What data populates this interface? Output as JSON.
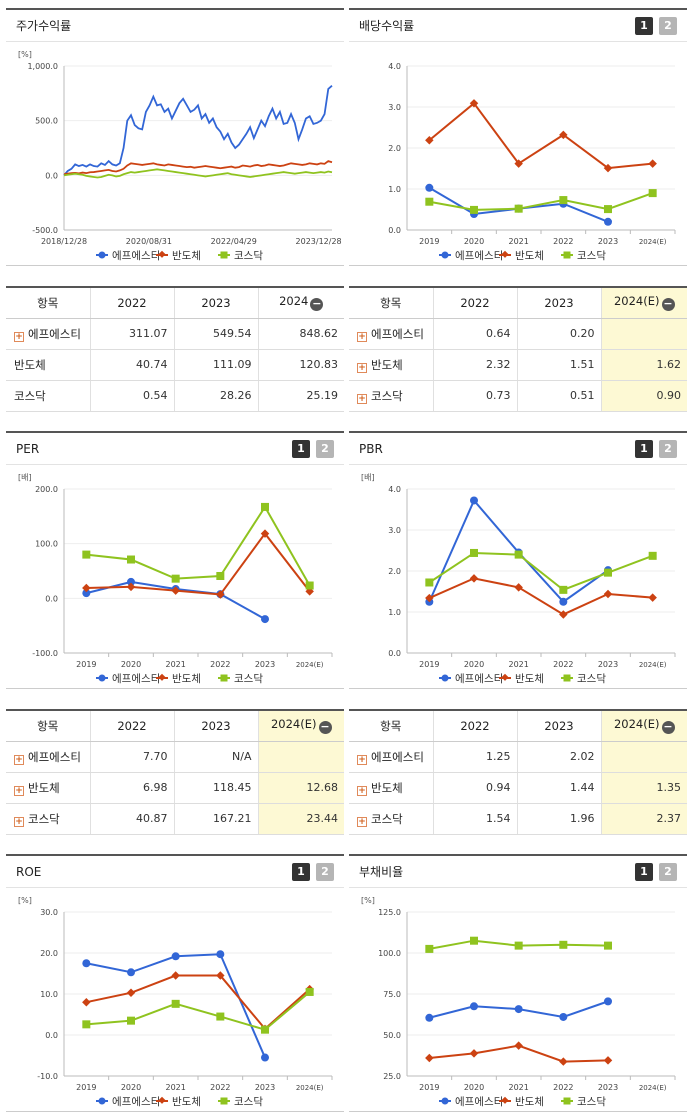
{
  "colors": {
    "s1": "#3266d6",
    "s2": "#cc4212",
    "s3": "#8fc31f"
  },
  "legend": [
    "에프에스티",
    "반도체",
    "코스닥"
  ],
  "panels": [
    {
      "id": "stock",
      "title": "주가수익률",
      "toggles": false,
      "unit": "[%]",
      "chart_data": {
        "type": "line",
        "x_tick_labels": [
          "2018/12/28",
          "2020/08/31",
          "2022/04/29",
          "2023/12/28"
        ],
        "y_ticks": [
          "1,000.0",
          "500.0",
          "0.0",
          "-500.0"
        ],
        "ylim": [
          -500,
          1000
        ],
        "series": [
          {
            "name": "에프에스티",
            "values": [
              0,
              40,
              60,
              100,
              85,
              95,
              80,
              100,
              85,
              80,
              110,
              95,
              130,
              100,
              90,
              110,
              250,
              500,
              550,
              460,
              430,
              420,
              580,
              640,
              720,
              640,
              650,
              580,
              610,
              520,
              590,
              660,
              700,
              640,
              580,
              600,
              640,
              520,
              560,
              480,
              520,
              440,
              400,
              330,
              380,
              300,
              250,
              280,
              330,
              380,
              440,
              340,
              420,
              500,
              450,
              540,
              610,
              520,
              580,
              470,
              480,
              560,
              480,
              330,
              420,
              520,
              540,
              470,
              480,
              500,
              560,
              790,
              820
            ],
            "step": 1
          },
          {
            "name": "반도체",
            "values": [
              10,
              15,
              20,
              22,
              18,
              25,
              20,
              28,
              30,
              35,
              40,
              45,
              50,
              40,
              35,
              45,
              60,
              90,
              110,
              105,
              100,
              95,
              100,
              105,
              110,
              100,
              95,
              90,
              100,
              95,
              90,
              85,
              80,
              75,
              78,
              70,
              75,
              80,
              85,
              80,
              75,
              70,
              65,
              70,
              75,
              80,
              70,
              75,
              90,
              85,
              80,
              90,
              95,
              85,
              90,
              100,
              95,
              90,
              85,
              90,
              100,
              110,
              105,
              100,
              95,
              100,
              110,
              105,
              100,
              110,
              105,
              130,
              120
            ]
          },
          {
            "name": "코스닥",
            "values": [
              0,
              5,
              10,
              15,
              10,
              5,
              -5,
              -10,
              -15,
              -20,
              -15,
              -5,
              5,
              0,
              -10,
              -5,
              10,
              20,
              30,
              25,
              30,
              35,
              40,
              45,
              50,
              55,
              50,
              45,
              40,
              35,
              30,
              25,
              20,
              15,
              10,
              5,
              0,
              -5,
              -10,
              -5,
              0,
              5,
              10,
              15,
              20,
              10,
              5,
              0,
              -5,
              -10,
              -15,
              -10,
              -5,
              0,
              5,
              10,
              15,
              20,
              25,
              30,
              25,
              20,
              15,
              20,
              25,
              30,
              25,
              20,
              25,
              30,
              25,
              35,
              28
            ]
          }
        ]
      }
    },
    {
      "id": "dividend",
      "title": "배당수익률",
      "toggles": true,
      "unit": "",
      "chart_data": {
        "type": "line",
        "categories": [
          "2019",
          "2020",
          "2021",
          "2022",
          "2023",
          "2024(E)"
        ],
        "y_ticks": [
          "4.0",
          "3.0",
          "2.0",
          "1.0",
          "0.0"
        ],
        "ylim": [
          0,
          4
        ],
        "series": [
          {
            "name": "에프에스티",
            "values": [
              1.03,
              0.39,
              0.52,
              0.64,
              0.2,
              null
            ]
          },
          {
            "name": "반도체",
            "values": [
              2.19,
              3.09,
              1.62,
              2.32,
              1.51,
              1.62
            ]
          },
          {
            "name": "코스닥",
            "values": [
              0.69,
              0.49,
              0.52,
              0.73,
              0.51,
              0.9
            ]
          }
        ]
      }
    },
    {
      "id": "per",
      "title": "PER",
      "toggles": true,
      "unit": "[배]",
      "chart_data": {
        "type": "line",
        "categories": [
          "2019",
          "2020",
          "2021",
          "2022",
          "2023",
          "2024(E)"
        ],
        "y_ticks": [
          "200.0",
          "100.0",
          "0.0",
          "-100.0"
        ],
        "ylim": [
          -100,
          200
        ],
        "series": [
          {
            "name": "에프에스티",
            "values": [
              9.5,
              30.0,
              17.0,
              7.7,
              -38.0,
              null
            ]
          },
          {
            "name": "반도체",
            "values": [
              19.0,
              21.0,
              14.0,
              6.98,
              118.45,
              12.68
            ]
          },
          {
            "name": "코스닥",
            "values": [
              80.0,
              71.0,
              36.0,
              40.87,
              167.21,
              23.44
            ]
          }
        ]
      }
    },
    {
      "id": "pbr",
      "title": "PBR",
      "toggles": true,
      "unit": "[배]",
      "chart_data": {
        "type": "line",
        "categories": [
          "2019",
          "2020",
          "2021",
          "2022",
          "2023",
          "2024(E)"
        ],
        "y_ticks": [
          "4.0",
          "3.0",
          "2.0",
          "1.0",
          "0.0"
        ],
        "ylim": [
          0,
          4
        ],
        "series": [
          {
            "name": "에프에스티",
            "values": [
              1.25,
              3.72,
              2.45,
              1.25,
              2.02,
              null
            ]
          },
          {
            "name": "반도체",
            "values": [
              1.34,
              1.82,
              1.6,
              0.94,
              1.44,
              1.35
            ]
          },
          {
            "name": "코스닥",
            "values": [
              1.72,
              2.44,
              2.4,
              1.54,
              1.96,
              2.37
            ]
          }
        ]
      }
    },
    {
      "id": "roe",
      "title": "ROE",
      "toggles": true,
      "unit": "[%]",
      "chart_data": {
        "type": "line",
        "categories": [
          "2019",
          "2020",
          "2021",
          "2022",
          "2023",
          "2024(E)"
        ],
        "y_ticks": [
          "30.0",
          "20.0",
          "10.0",
          "0.0",
          "-10.0"
        ],
        "ylim": [
          -10,
          30
        ],
        "series": [
          {
            "name": "에프에스티",
            "values": [
              17.5,
              15.3,
              19.2,
              19.7,
              -5.5,
              null
            ]
          },
          {
            "name": "반도체",
            "values": [
              8.0,
              10.3,
              14.5,
              14.5,
              1.5,
              11.2
            ]
          },
          {
            "name": "코스닥",
            "values": [
              2.6,
              3.5,
              7.6,
              4.5,
              1.3,
              10.5
            ]
          }
        ]
      }
    },
    {
      "id": "debt",
      "title": "부채비율",
      "toggles": true,
      "unit": "[%]",
      "chart_data": {
        "type": "line",
        "categories": [
          "2019",
          "2020",
          "2021",
          "2022",
          "2023",
          "2024(E)"
        ],
        "y_ticks": [
          "125.0",
          "100.0",
          "75.0",
          "50.0",
          "25.0"
        ],
        "ylim": [
          25,
          125
        ],
        "series": [
          {
            "name": "에프에스티",
            "values": [
              60.5,
              67.5,
              65.8,
              61.0,
              70.5,
              null
            ]
          },
          {
            "name": "반도체",
            "values": [
              36.0,
              38.8,
              43.5,
              33.8,
              34.5,
              null
            ]
          },
          {
            "name": "코스닥",
            "values": [
              102.5,
              107.5,
              104.5,
              105.0,
              104.5,
              null
            ]
          }
        ]
      }
    }
  ],
  "tables": [
    {
      "id": "t-stock",
      "head": [
        "항목",
        "2022",
        "2023",
        "2024"
      ],
      "minus": true,
      "hl_col": -1,
      "rows": [
        {
          "plus": true,
          "name": "에프에스티",
          "v": [
            "311.07",
            "549.54",
            "848.62"
          ]
        },
        {
          "plus": false,
          "name": "반도체",
          "v": [
            "40.74",
            "111.09",
            "120.83"
          ]
        },
        {
          "plus": false,
          "name": "코스닥",
          "v": [
            "0.54",
            "28.26",
            "25.19"
          ]
        }
      ]
    },
    {
      "id": "t-div",
      "head": [
        "항목",
        "2022",
        "2023",
        "2024(E)"
      ],
      "minus": true,
      "hl_col": 2,
      "rows": [
        {
          "plus": true,
          "name": "에프에스티",
          "v": [
            "0.64",
            "0.20",
            ""
          ]
        },
        {
          "plus": true,
          "name": "반도체",
          "v": [
            "2.32",
            "1.51",
            "1.62"
          ]
        },
        {
          "plus": true,
          "name": "코스닥",
          "v": [
            "0.73",
            "0.51",
            "0.90"
          ]
        }
      ]
    },
    {
      "id": "t-per",
      "head": [
        "항목",
        "2022",
        "2023",
        "2024(E)"
      ],
      "minus": true,
      "hl_col": 2,
      "rows": [
        {
          "plus": true,
          "name": "에프에스티",
          "v": [
            "7.70",
            "N/A",
            ""
          ]
        },
        {
          "plus": true,
          "name": "반도체",
          "v": [
            "6.98",
            "118.45",
            "12.68"
          ]
        },
        {
          "plus": true,
          "name": "코스닥",
          "v": [
            "40.87",
            "167.21",
            "23.44"
          ]
        }
      ]
    },
    {
      "id": "t-pbr",
      "head": [
        "항목",
        "2022",
        "2023",
        "2024(E)"
      ],
      "minus": true,
      "hl_col": 2,
      "rows": [
        {
          "plus": true,
          "name": "에프에스티",
          "v": [
            "1.25",
            "2.02",
            ""
          ]
        },
        {
          "plus": true,
          "name": "반도체",
          "v": [
            "0.94",
            "1.44",
            "1.35"
          ]
        },
        {
          "plus": true,
          "name": "코스닥",
          "v": [
            "1.54",
            "1.96",
            "2.37"
          ]
        }
      ]
    }
  ]
}
